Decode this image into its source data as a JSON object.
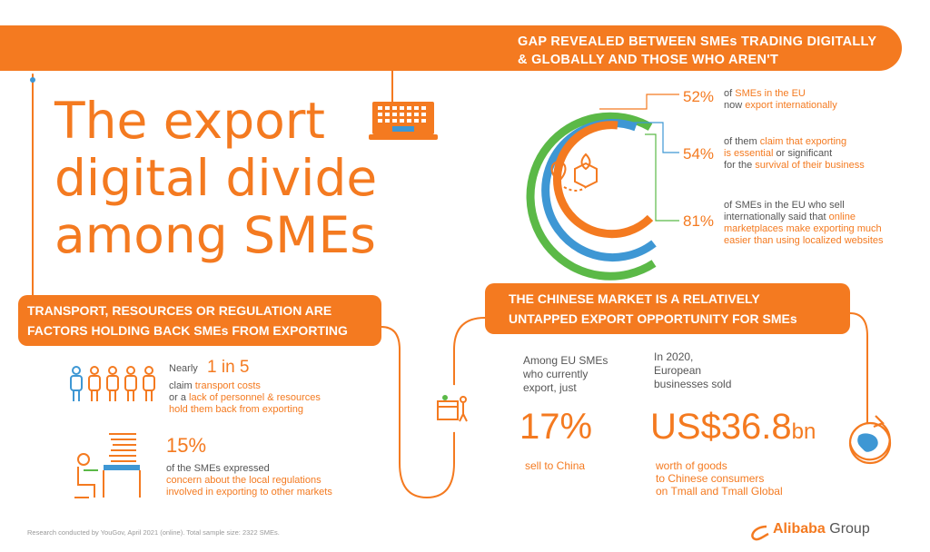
{
  "top_banner": {
    "line1": "GAP REVEALED BETWEEN SMEs TRADING DIGITALLY",
    "line2": "& GLOBALLY AND THOSE WHO AREN'T"
  },
  "title": {
    "line1": "The export",
    "line2": "digital divide",
    "line3": "among SMEs"
  },
  "stats_ring": [
    {
      "pct": "52%",
      "text_a": "of ",
      "hl": "SMEs in the EU",
      "text_b": "",
      "line2_a": "now ",
      "line2_hl": "export internationally",
      "line2_b": ""
    },
    {
      "pct": "54%",
      "line1": "of them ",
      "line1_hl": "claim that exporting",
      "line2_hl": "is essential",
      "line2_b": " or significant",
      "line3_a": "for the ",
      "line3_hl": "survival of their business"
    },
    {
      "pct": "81%",
      "line1": "of SMEs in the EU who sell",
      "line2_a": "internationally said that ",
      "line2_hl": "online",
      "line3_hl": "marketplaces make exporting much",
      "line4_hl": "easier than using localized websites"
    }
  ],
  "transport_banner": {
    "line1": "TRANSPORT, RESOURCES OR REGULATION ARE",
    "line2": "FACTORS HOLDING BACK SMEs FROM EXPORTING"
  },
  "stat_1in5": {
    "prefix": "Nearly",
    "value": "1 in 5",
    "line1_a": "claim ",
    "line1_hl": "transport costs",
    "line2_a": "or a ",
    "line2_hl": "lack of personnel & resources",
    "line3_hl": "hold them back from exporting"
  },
  "stat_15": {
    "value": "15%",
    "line1": "of the SMEs expressed",
    "line2_hl": "concern about the local regulations",
    "line3_hl": "involved in exporting to other markets"
  },
  "chinese_banner": {
    "line1": "THE CHINESE MARKET IS A RELATIVELY",
    "line2": "UNTAPPED EXPORT OPPORTUNITY FOR SMEs"
  },
  "stat_17": {
    "line1": "Among EU SMEs",
    "line2": "who currently",
    "line3": "export, just",
    "value": "17%",
    "caption": "sell to China"
  },
  "stat_36": {
    "line1": "In 2020,",
    "line2": "European",
    "line3": "businesses sold",
    "value": "US$36.8",
    "unit": "bn",
    "cap1": "worth of goods",
    "cap2": "to Chinese consumers",
    "cap3": "on Tmall and Tmall Global"
  },
  "footer_note": "Research conducted by YouGov, April 2021 (online). Total sample size: 2322 SMEs.",
  "brand": {
    "name": "Alibaba",
    "group": "Group"
  },
  "colors": {
    "orange": "#f47a20",
    "green": "#5bb947",
    "blue": "#3e97d4"
  }
}
